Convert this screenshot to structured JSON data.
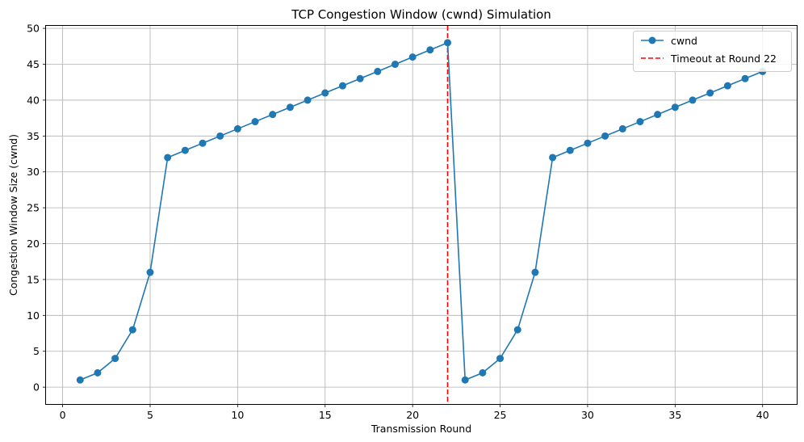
{
  "chart_data": {
    "type": "line",
    "title": "TCP Congestion Window (cwnd) Simulation",
    "xlabel": "Transmission Round",
    "ylabel": "Congestion Window Size (cwnd)",
    "xlim": [
      -0.95,
      41.95
    ],
    "ylim": [
      -2.35,
      50.35
    ],
    "xticks": [
      0,
      5,
      10,
      15,
      20,
      25,
      30,
      35,
      40
    ],
    "yticks": [
      0,
      5,
      10,
      15,
      20,
      25,
      30,
      35,
      40,
      45,
      50
    ],
    "grid": true,
    "legend_position": "top-right",
    "series": [
      {
        "name": "cwnd",
        "color": "#1f77b4",
        "marker": "circle",
        "x": [
          1,
          2,
          3,
          4,
          5,
          6,
          7,
          8,
          9,
          10,
          11,
          12,
          13,
          14,
          15,
          16,
          17,
          18,
          19,
          20,
          21,
          22,
          23,
          24,
          25,
          26,
          27,
          28,
          29,
          30,
          31,
          32,
          33,
          34,
          35,
          36,
          37,
          38,
          39,
          40
        ],
        "values": [
          1,
          2,
          4,
          8,
          16,
          32,
          33,
          34,
          35,
          36,
          37,
          38,
          39,
          40,
          41,
          42,
          43,
          44,
          45,
          46,
          47,
          48,
          1,
          2,
          4,
          8,
          16,
          32,
          33,
          34,
          35,
          36,
          37,
          38,
          39,
          40,
          41,
          42,
          43,
          44
        ]
      }
    ],
    "annotations": [
      {
        "type": "vline",
        "x": 22,
        "label": "Timeout at Round 22",
        "color": "#ff0000",
        "style": "dashed"
      }
    ]
  }
}
